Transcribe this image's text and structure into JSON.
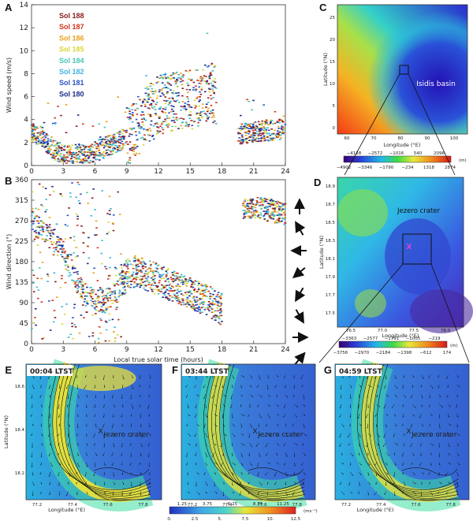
{
  "panel_labels": [
    "A",
    "B",
    "C",
    "D",
    "E",
    "F",
    "G"
  ],
  "colors": {
    "Sol 188": "#8b1a1a",
    "Sol 187": "#d2321c",
    "Sol 186": "#e8a020",
    "Sol 185": "#d6d83a",
    "Sol 184": "#46c7b4",
    "Sol 182": "#3fb3e0",
    "Sol 181": "#2a52c8",
    "Sol 180": "#1b2a8a"
  },
  "chart_data": [
    {
      "panel": "A",
      "type": "scatter",
      "xlabel": "",
      "ylabel": "Wind speed (m/s)",
      "xlim": [
        0,
        24
      ],
      "ylim": [
        0,
        14
      ],
      "xticks": [
        "0",
        "3",
        "6",
        "9",
        "12",
        "15",
        "18",
        "21",
        "24"
      ],
      "yticks": [
        "0",
        "2",
        "4",
        "6",
        "8",
        "10",
        "12",
        "14"
      ],
      "legend_placement": "top-left",
      "series_names": [
        "Sol 188",
        "Sol 187",
        "Sol 186",
        "Sol 185",
        "Sol 184",
        "Sol 182",
        "Sol 181",
        "Sol 180"
      ],
      "trend": {
        "x": [
          0,
          1,
          2,
          3,
          4,
          5,
          6,
          7,
          8,
          9,
          10,
          11,
          12,
          13,
          14,
          15,
          16,
          17,
          17.5,
          18,
          19.5,
          20,
          21,
          22,
          23,
          24
        ],
        "y": [
          3.0,
          2.5,
          1.5,
          1.0,
          0.9,
          1.0,
          1.2,
          1.6,
          2.0,
          2.5,
          3.3,
          4.4,
          5.2,
          5.5,
          5.6,
          5.7,
          6.0,
          6.4,
          6.0,
          null,
          2.5,
          2.8,
          2.9,
          3.0,
          3.1,
          3.2
        ]
      }
    },
    {
      "panel": "B",
      "type": "scatter",
      "xlabel": "Local true solar time (hours)",
      "ylabel": "Wind direction (°)",
      "xlim": [
        0,
        24
      ],
      "ylim": [
        0,
        360
      ],
      "xticks": [
        "0",
        "3",
        "6",
        "9",
        "12",
        "15",
        "18",
        "21",
        "24"
      ],
      "yticks": [
        "0",
        "45",
        "90",
        "135",
        "180",
        "225",
        "270",
        "315",
        "360"
      ],
      "trend": {
        "x": [
          0,
          1,
          2,
          3,
          4,
          5,
          6,
          7,
          8,
          9,
          10,
          11,
          12,
          13,
          14,
          15,
          16,
          17,
          18,
          19.5,
          20,
          21,
          22,
          23,
          24
        ],
        "y": [
          270,
          245,
          230,
          200,
          150,
          110,
          95,
          95,
          110,
          150,
          160,
          150,
          140,
          130,
          120,
          110,
          100,
          90,
          75,
          null,
          295,
          300,
          295,
          290,
          285
        ]
      },
      "arrow_directions_deg": [
        0,
        330,
        270,
        230,
        210,
        150,
        90,
        40
      ]
    }
  ],
  "map_c": {
    "label": "C",
    "ylabel": "Latitude (°N)",
    "xlabel": "Longitude (°E)",
    "annotation": "Isidis basin",
    "yticks": [
      "25",
      "20",
      "15",
      "10",
      "5",
      "0"
    ],
    "xticks": [
      "60",
      "70",
      "80",
      "90",
      "100"
    ],
    "cbar_top": [
      "−4128",
      "−2572",
      "−1016",
      "540",
      "2096"
    ],
    "cbar_bottom": [
      "−4902",
      "−3346",
      "−1790",
      "−234",
      "1318",
      "2874"
    ],
    "cbar_unit": "(m)"
  },
  "map_d": {
    "label": "D",
    "ylabel": "Latitude (°N)",
    "xlabel": "Longitude (°E)",
    "annotation": "Jezero crater",
    "marker": "X",
    "yticks": [
      "18.9",
      "18.7",
      "18.5",
      "18.3",
      "18.1",
      "17.9",
      "17.7",
      "17.5"
    ],
    "xticks": [
      "76.5",
      "77.0",
      "77.5",
      "78.0"
    ],
    "cbar_top": [
      "−3363",
      "−2577",
      "−1791",
      "−1005",
      "−219"
    ],
    "cbar_bottom": [
      "−3756",
      "−2970",
      "−2184",
      "−1398",
      "−612",
      "174"
    ],
    "cbar_unit": "(m)"
  },
  "wind_maps": [
    {
      "label": "E",
      "time": "00:04 LTST",
      "annotation": "Jezero crater",
      "marker": "X"
    },
    {
      "label": "F",
      "time": "03:44 LTST",
      "annotation": "Jezero crater",
      "marker": "X"
    },
    {
      "label": "G",
      "time": "04:59 LTST",
      "annotation": "Jezero crater",
      "marker": "X"
    }
  ],
  "wind_axes": {
    "ylabel": "Latitude (°N)",
    "xlabel": "Longitude (°E)",
    "yticks": [
      "18.6",
      "18.4",
      "18.2"
    ],
    "xticks": [
      "77.2",
      "77.4",
      "77.6",
      "77.8"
    ]
  },
  "bottom_colorbar": {
    "top_labels": [
      "1.25",
      "3.75",
      "6.25",
      "8.75",
      "11.25"
    ],
    "bottom_labels": [
      "0.",
      "2.5",
      "5.",
      "7.5",
      "10.",
      "12.5"
    ],
    "unit": "(ms⁻¹)"
  }
}
